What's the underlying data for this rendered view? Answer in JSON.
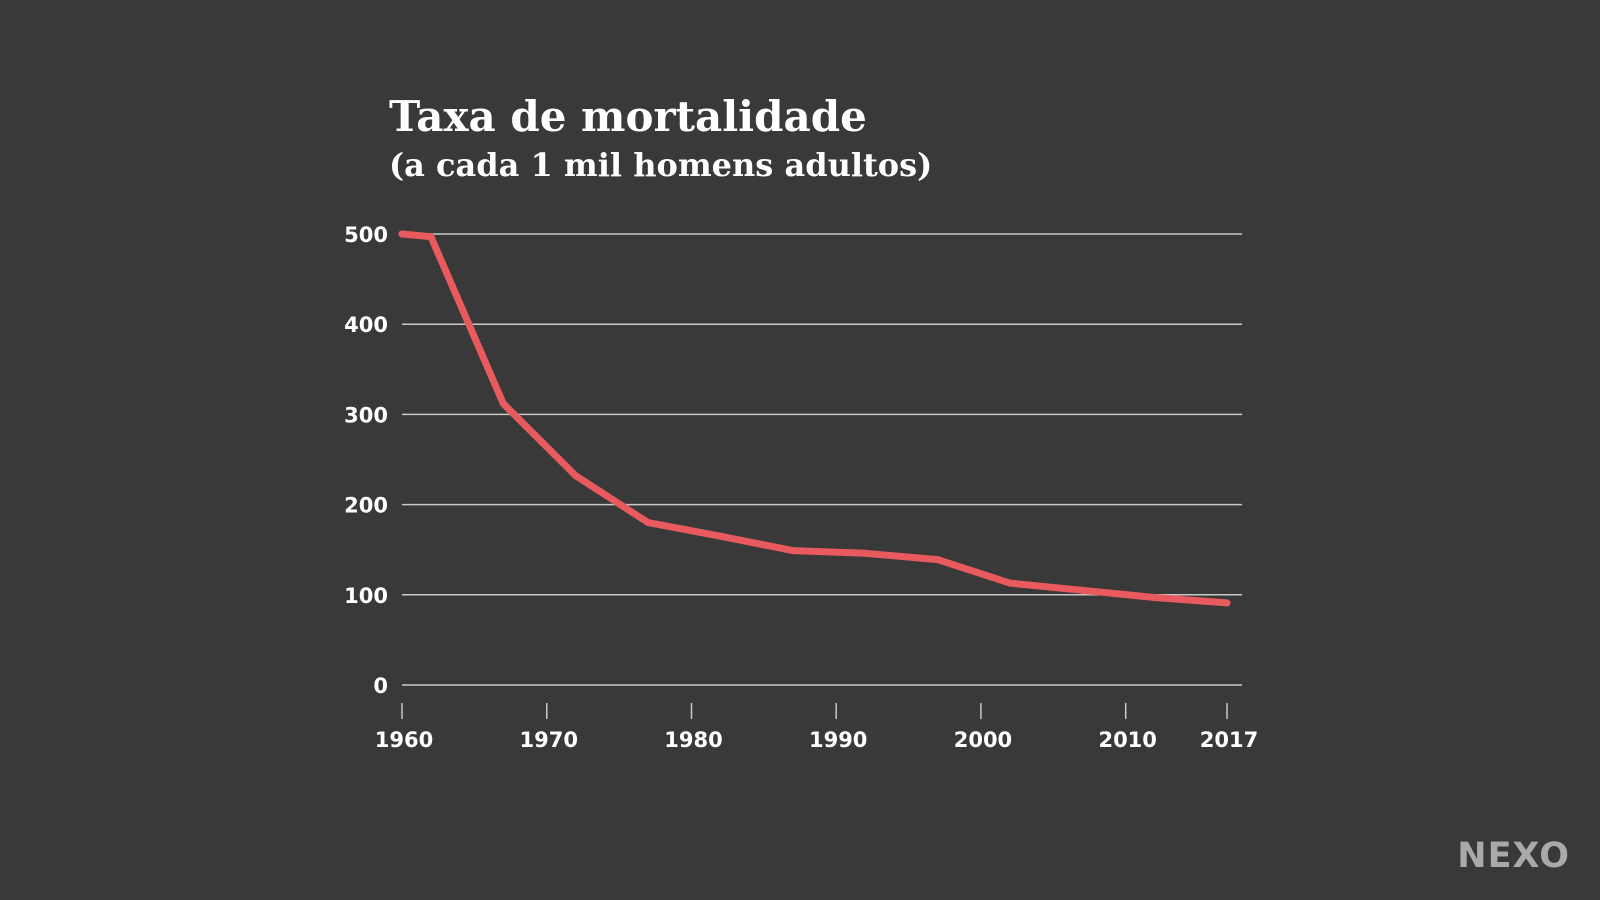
{
  "chart_data": {
    "type": "line",
    "title": "Taxa de mortalidade",
    "subtitle": "(a cada 1 mil homens adultos)",
    "xlabel": "",
    "ylabel": "",
    "xlim": [
      1960,
      2017
    ],
    "ylim": [
      0,
      500
    ],
    "grid": true,
    "x_ticks": [
      {
        "value": 1960,
        "label": "1960"
      },
      {
        "value": 1970,
        "label": "1970"
      },
      {
        "value": 1980,
        "label": "1980"
      },
      {
        "value": 1990,
        "label": "1990"
      },
      {
        "value": 2000,
        "label": "2000"
      },
      {
        "value": 2010,
        "label": "2010"
      },
      {
        "value": 2017,
        "label": "2017"
      }
    ],
    "y_ticks": [
      {
        "value": 0,
        "label": "0"
      },
      {
        "value": 100,
        "label": "100"
      },
      {
        "value": 200,
        "label": "200"
      },
      {
        "value": 300,
        "label": "300"
      },
      {
        "value": 400,
        "label": "400"
      },
      {
        "value": 500,
        "label": "500"
      }
    ],
    "series": [
      {
        "name": "Taxa de mortalidade",
        "color": "#e85a5e",
        "x": [
          1960,
          1962,
          1967,
          1972,
          1977,
          1982,
          1987,
          1992,
          1997,
          2002,
          2007,
          2012,
          2017
        ],
        "y": [
          500,
          497,
          312,
          232,
          180,
          165,
          149,
          146,
          139,
          113,
          105,
          97,
          91
        ]
      }
    ]
  },
  "branding": {
    "logo_text": "NEXO"
  },
  "colors": {
    "background": "#393939",
    "text": "#ffffff",
    "grid": "#c9c9c9",
    "line": "#e85a5e",
    "logo": "#bdbdbd"
  }
}
